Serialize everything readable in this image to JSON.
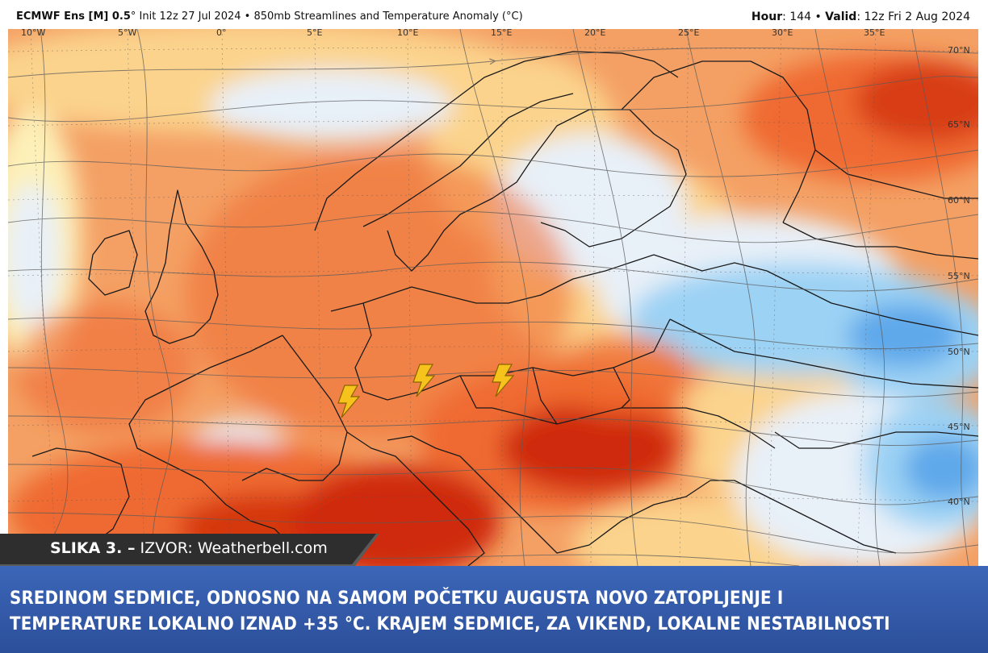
{
  "header": {
    "model": "ECMWF Ens [M] 0.5",
    "init": "° Init 12z 27 Jul 2024 • 850mb Streamlines and Temperature Anomaly (°C)",
    "hour_label": "Hour",
    "hour_value": ": 144 • ",
    "valid_label": "Valid",
    "valid_value": ": 12z Fri 2 Aug 2024"
  },
  "map": {
    "longitude_labels": [
      "10°W",
      "5°W",
      "0°",
      "5°E",
      "10°E",
      "15°E",
      "20°E",
      "25°E",
      "30°E",
      "35°E"
    ],
    "latitude_labels": [
      "70°N",
      "65°N",
      "60°N",
      "55°N",
      "50°N",
      "45°N",
      "40°N"
    ],
    "colors": {
      "very_warm": "#cf2a0a",
      "warm": "#ef6a30",
      "mild": "#f4a064",
      "slight": "#fbd38c",
      "neutral": "#fdf0b8",
      "cool": "#e8f0f8",
      "cold": "#9cd2f4",
      "colder": "#5ea8ea"
    },
    "markers": [
      "lightning-icon",
      "lightning-icon",
      "lightning-icon"
    ]
  },
  "credit": {
    "slika": "SLIKA 3. –",
    "izvor": " IZVOR: Weatherbell.com"
  },
  "banner": {
    "line1": "SREDINOM SEDMICE, ODNOSNO NA SAMOM POČETKU AUGUSTA NOVO ZATOPLJENJE I",
    "line2": "TEMPERATURE LOKALNO IZNAD +35 °C. KRAJEM SEDMICE, ZA VIKEND, LOKALNE NESTABILNOSTI"
  }
}
